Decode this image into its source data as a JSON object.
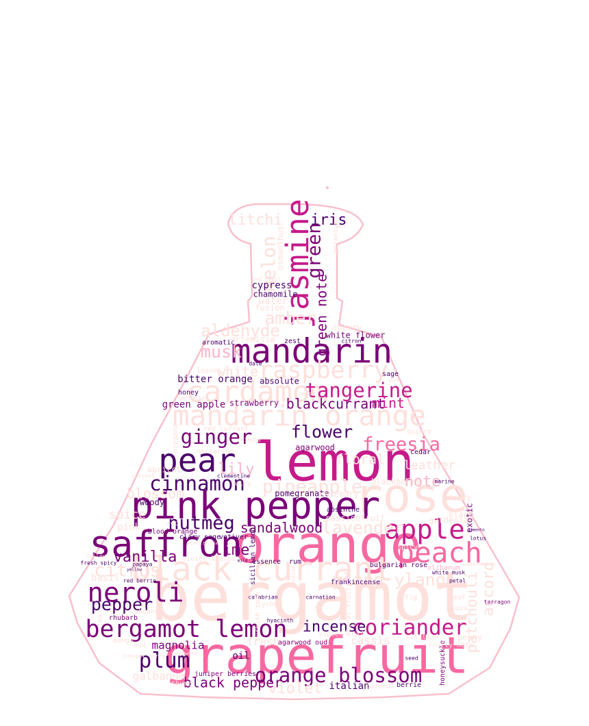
{
  "title": "",
  "colors": {
    "outline": "#f8c0cc",
    "pale": "#fde0dc",
    "light": "#fbb5c9",
    "pink": "#f768a1",
    "magenta": "#c51b8a",
    "purple": "#7a0177",
    "dark": "#49006a"
  },
  "words": [
    {
      "text": "bergamot",
      "weight": 100,
      "color": "pale"
    },
    {
      "text": "lemon",
      "weight": 80,
      "color": "magenta"
    },
    {
      "text": "orange",
      "weight": 78,
      "color": "pink"
    },
    {
      "text": "grapefruit",
      "weight": 76,
      "color": "pink"
    },
    {
      "text": "rose",
      "weight": 70,
      "color": "pale"
    },
    {
      "text": "pink pepper",
      "weight": 56,
      "color": "purple"
    },
    {
      "text": "saffron",
      "weight": 54,
      "color": "purple"
    },
    {
      "text": "black currant",
      "weight": 50,
      "color": "pale"
    },
    {
      "text": "mandarin",
      "weight": 50,
      "color": "purple"
    },
    {
      "text": "pear",
      "weight": 48,
      "color": "dark"
    },
    {
      "text": "jasmine",
      "weight": 46,
      "color": "magenta"
    },
    {
      "text": "cardamom",
      "weight": 44,
      "color": "pale"
    },
    {
      "text": "mandarin orange",
      "weight": 42,
      "color": "pale"
    },
    {
      "text": "peach",
      "weight": 42,
      "color": "pink"
    },
    {
      "text": "apple",
      "weight": 40,
      "color": "magenta"
    },
    {
      "text": "neroli",
      "weight": 40,
      "color": "purple"
    },
    {
      "text": "bergamot lemon",
      "weight": 36,
      "color": "purple"
    },
    {
      "text": "raspberry",
      "weight": 36,
      "color": "pale"
    },
    {
      "text": "coriander",
      "weight": 32,
      "color": "magenta"
    },
    {
      "text": "plum",
      "weight": 32,
      "color": "dark"
    },
    {
      "text": "orange blossom",
      "weight": 30,
      "color": "purple"
    },
    {
      "text": "tangerine",
      "weight": 30,
      "color": "magenta"
    },
    {
      "text": "cinnamon",
      "weight": 30,
      "color": "dark"
    },
    {
      "text": "ginger",
      "weight": 30,
      "color": "purple"
    },
    {
      "text": "citrus",
      "weight": 28,
      "color": "pale"
    },
    {
      "text": "melon",
      "weight": 28,
      "color": "pale"
    },
    {
      "text": "green",
      "weight": 28,
      "color": "purple"
    },
    {
      "text": "nutmeg",
      "weight": 28,
      "color": "dark"
    },
    {
      "text": "freesia",
      "weight": 28,
      "color": "pink"
    },
    {
      "text": "pineapple",
      "weight": 28,
      "color": "pale"
    },
    {
      "text": "lavender",
      "weight": 26,
      "color": "pale"
    },
    {
      "text": "ylang ylang",
      "weight": 26,
      "color": "pale"
    },
    {
      "text": "pepper",
      "weight": 26,
      "color": "dark"
    },
    {
      "text": "flower",
      "weight": 26,
      "color": "dark"
    },
    {
      "text": "amber",
      "weight": 26,
      "color": "pale"
    },
    {
      "text": "musk",
      "weight": 26,
      "color": "light"
    },
    {
      "text": "aldehyde",
      "weight": 24,
      "color": "pale"
    },
    {
      "text": "iris",
      "weight": 22,
      "color": "dark"
    },
    {
      "text": "litchi",
      "weight": 22,
      "color": "pale"
    },
    {
      "text": "incense",
      "weight": 22,
      "color": "dark"
    },
    {
      "text": "violet",
      "weight": 22,
      "color": "pale"
    },
    {
      "text": "note",
      "weight": 22,
      "color": "light"
    },
    {
      "text": "vanilla",
      "weight": 22,
      "color": "purple"
    },
    {
      "text": "patchouli",
      "weight": 22,
      "color": "pale"
    },
    {
      "text": "accord",
      "weight": 22,
      "color": "pale"
    },
    {
      "text": "lime",
      "weight": 22,
      "color": "purple"
    },
    {
      "text": "lily",
      "weight": 22,
      "color": "light"
    },
    {
      "text": "sandalwood",
      "weight": 20,
      "color": "purple"
    },
    {
      "text": "black pepper",
      "weight": 20,
      "color": "purple"
    },
    {
      "text": "blackcurrant",
      "weight": 20,
      "color": "purple"
    },
    {
      "text": "blossom",
      "weight": 20,
      "color": "pale"
    },
    {
      "text": "green note",
      "weight": 20,
      "color": "purple"
    },
    {
      "text": "mint",
      "weight": 20,
      "color": "magenta"
    },
    {
      "text": "white",
      "weight": 20,
      "color": "pale"
    },
    {
      "text": "floral",
      "weight": 20,
      "color": "pale"
    },
    {
      "text": "leather",
      "weight": 18,
      "color": "pale"
    },
    {
      "text": "spice",
      "weight": 18,
      "color": "pale"
    },
    {
      "text": "galbanum",
      "weight": 16,
      "color": "pale"
    },
    {
      "text": "magnolia",
      "weight": 16,
      "color": "purple"
    },
    {
      "text": "cassis",
      "weight": 16,
      "color": "pale"
    },
    {
      "text": "fresh",
      "weight": 16,
      "color": "pale"
    },
    {
      "text": "italian",
      "weight": 14,
      "color": "dark"
    },
    {
      "text": "oil",
      "weight": 14,
      "color": "dark"
    },
    {
      "text": "ambrette",
      "weight": 8,
      "color": "pale"
    },
    {
      "text": "bitter orange",
      "weight": 14,
      "color": "dark"
    },
    {
      "text": "green apple",
      "weight": 14,
      "color": "purple"
    },
    {
      "text": "pomegranate",
      "weight": 12,
      "color": "dark"
    },
    {
      "text": "agarwood",
      "weight": 12,
      "color": "purple"
    },
    {
      "text": "strawberry",
      "weight": 12,
      "color": "purple"
    },
    {
      "text": "cypress",
      "weight": 14,
      "color": "dark"
    },
    {
      "text": "chamomile",
      "weight": 12,
      "color": "dark"
    },
    {
      "text": "water",
      "weight": 14,
      "color": "pale"
    },
    {
      "text": "fusion",
      "weight": 12,
      "color": "pale"
    },
    {
      "text": "osmanthus",
      "weight": 12,
      "color": "pale"
    },
    {
      "text": "geranium",
      "weight": 10,
      "color": "pale"
    },
    {
      "text": "aromatic",
      "weight": 10,
      "color": "dark"
    },
    {
      "text": "artemisia",
      "weight": 12,
      "color": "pale"
    },
    {
      "text": "zest",
      "weight": 10,
      "color": "dark"
    },
    {
      "text": "white flower",
      "weight": 12,
      "color": "purple"
    },
    {
      "text": "cherry",
      "weight": 12,
      "color": "pale"
    },
    {
      "text": "leaves",
      "weight": 10,
      "color": "pale"
    },
    {
      "text": "date",
      "weight": 8,
      "color": "dark"
    },
    {
      "text": "sage",
      "weight": 10,
      "color": "dark"
    },
    {
      "text": "absolute",
      "weight": 12,
      "color": "dark"
    },
    {
      "text": "honey",
      "weight": 10,
      "color": "dark"
    },
    {
      "text": "quince",
      "weight": 10,
      "color": "pale"
    },
    {
      "text": "cedar",
      "weight": 10,
      "color": "dark"
    },
    {
      "text": "red currant",
      "weight": 10,
      "color": "pale"
    },
    {
      "text": "mimosa",
      "weight": 8,
      "color": "pale"
    },
    {
      "text": "nectarine",
      "weight": 10,
      "color": "pale"
    },
    {
      "text": "oregano",
      "weight": 10,
      "color": "pale"
    },
    {
      "text": "clementine",
      "weight": 8,
      "color": "dark"
    },
    {
      "text": "juicy",
      "weight": 10,
      "color": "pale"
    },
    {
      "text": "rosemary",
      "weight": 12,
      "color": "pale"
    },
    {
      "text": "blackberry",
      "weight": 12,
      "color": "pale"
    },
    {
      "text": "absinthe",
      "weight": 10,
      "color": "dark"
    },
    {
      "text": "passionfruit",
      "weight": 12,
      "color": "pale"
    },
    {
      "text": "exotic",
      "weight": 12,
      "color": "purple"
    },
    {
      "text": "marine",
      "weight": 8,
      "color": "dark"
    },
    {
      "text": "black",
      "weight": 12,
      "color": "pale"
    },
    {
      "text": "woody",
      "weight": 12,
      "color": "dark"
    },
    {
      "text": "basil",
      "weight": 14,
      "color": "pale"
    },
    {
      "text": "red",
      "weight": 10,
      "color": "pale"
    },
    {
      "text": "blood orange",
      "weight": 10,
      "color": "purple"
    },
    {
      "text": "clary sage",
      "weight": 10,
      "color": "dark"
    },
    {
      "text": "vetiver",
      "weight": 10,
      "color": "dark"
    },
    {
      "text": "star anise",
      "weight": 8,
      "color": "pale"
    },
    {
      "text": "violet leaves",
      "weight": 10,
      "color": "pale"
    },
    {
      "text": "essence",
      "weight": 10,
      "color": "dark"
    },
    {
      "text": "rum",
      "weight": 10,
      "color": "dark"
    },
    {
      "text": "frankincense",
      "weight": 10,
      "color": "dark"
    },
    {
      "text": "bulgarian rose",
      "weight": 10,
      "color": "dark"
    },
    {
      "text": "olibanum",
      "weight": 10,
      "color": "light"
    },
    {
      "text": "lotus",
      "weight": 8,
      "color": "dark"
    },
    {
      "text": "spicy",
      "weight": 10,
      "color": "pale"
    },
    {
      "text": "gardenia",
      "weight": 12,
      "color": "pale"
    },
    {
      "text": "fruity",
      "weight": 12,
      "color": "pale"
    },
    {
      "text": "honeysuckle",
      "weight": 10,
      "color": "purple"
    },
    {
      "text": "peony",
      "weight": 12,
      "color": "pale"
    },
    {
      "text": "sicilian",
      "weight": 10,
      "color": "pale"
    },
    {
      "text": "fruity note",
      "weight": 10,
      "color": "pale"
    },
    {
      "text": "red berrie",
      "weight": 8,
      "color": "dark"
    },
    {
      "text": "lychee",
      "weight": 10,
      "color": "pale"
    },
    {
      "text": "hyacinth",
      "weight": 8,
      "color": "dark"
    },
    {
      "text": "carnation",
      "weight": 8,
      "color": "dark"
    },
    {
      "text": "calabrian",
      "weight": 8,
      "color": "dark"
    },
    {
      "text": "agarwood oud",
      "weight": 10,
      "color": "purple"
    },
    {
      "text": "violet leaf",
      "weight": 10,
      "color": "pale"
    },
    {
      "text": "rhubarb",
      "weight": 10,
      "color": "purple"
    },
    {
      "text": "labdanum",
      "weight": 10,
      "color": "pale"
    },
    {
      "text": "mango",
      "weight": 10,
      "color": "pale"
    },
    {
      "text": "oud",
      "weight": 10,
      "color": "pale"
    },
    {
      "text": "wormwood",
      "weight": 8,
      "color": "pale"
    },
    {
      "text": "thyme",
      "weight": 10,
      "color": "pale"
    },
    {
      "text": "juniper berries",
      "weight": 10,
      "color": "purple"
    },
    {
      "text": "coconut",
      "weight": 10,
      "color": "pale"
    },
    {
      "text": "berrie",
      "weight": 10,
      "color": "dark"
    },
    {
      "text": "seed",
      "weight": 8,
      "color": "dark"
    },
    {
      "text": "yuzu",
      "weight": 10,
      "color": "pale"
    },
    {
      "text": "tarragon",
      "weight": 8,
      "color": "purple"
    },
    {
      "text": "leaf",
      "weight": 10,
      "color": "pale"
    },
    {
      "text": "petal",
      "weight": 8,
      "color": "dark"
    },
    {
      "text": "watermelon",
      "weight": 8,
      "color": "pale"
    },
    {
      "text": "white musk",
      "weight": 8,
      "color": "dark"
    },
    {
      "text": "pimento",
      "weight": 6,
      "color": "dark"
    },
    {
      "text": "tea",
      "weight": 10,
      "color": "pale"
    },
    {
      "text": "fresh spicy",
      "weight": 8,
      "color": "dark"
    },
    {
      "text": "papaya",
      "weight": 8,
      "color": "dark"
    },
    {
      "text": "currant",
      "weight": 8,
      "color": "pale"
    },
    {
      "text": "apricot",
      "weight": 12,
      "color": "pale"
    },
    {
      "text": "pink",
      "weight": 14,
      "color": "pale"
    },
    {
      "text": "valley",
      "weight": 8,
      "color": "pale"
    },
    {
      "text": "yellow",
      "weight": 6,
      "color": "dark"
    },
    {
      "text": "fig",
      "weight": 10,
      "color": "pale"
    },
    {
      "text": "bud",
      "weight": 8,
      "color": "pale"
    },
    {
      "text": "salt",
      "weight": 6,
      "color": "pale"
    },
    {
      "text": "mild",
      "weight": 6,
      "color": "dark"
    },
    {
      "text": "juniper berry",
      "weight": 8,
      "color": "pale"
    },
    {
      "text": "turkish rose",
      "weight": 10,
      "color": "pale"
    },
    {
      "text": "sicilian lemon",
      "weight": 10,
      "color": "dark"
    },
    {
      "text": "floral fruity",
      "weight": 10,
      "color": "pale"
    },
    {
      "text": "indian",
      "weight": 8,
      "color": "pale"
    },
    {
      "text": "red fruit",
      "weight": 8,
      "color": "pale"
    },
    {
      "text": "citron",
      "weight": 8,
      "color": "dark"
    },
    {
      "text": "anise",
      "weight": 8,
      "color": "pale"
    }
  ]
}
